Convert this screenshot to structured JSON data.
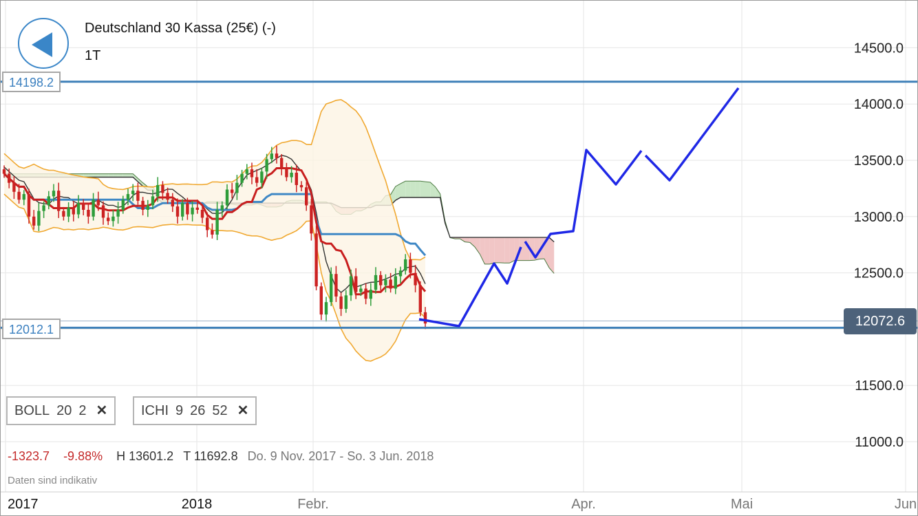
{
  "header": {
    "title": "Deutschland 30 Kassa (25€) (-)",
    "period": "1T"
  },
  "levels": {
    "upper": "14198.2",
    "lower": "12012.1",
    "current": "12072.6"
  },
  "indicators": {
    "boll": {
      "name": "BOLL",
      "p1": "20",
      "p2": "2"
    },
    "ichi": {
      "name": "ICHI",
      "p1": "9",
      "p2": "26",
      "p3": "52"
    }
  },
  "stats": {
    "change": "-1323.7",
    "change_pct": "-9.88%",
    "high": "H 13601.2",
    "low": "T 11692.8",
    "range": "Do. 9 Nov. 2017 - So. 3 Jun. 2018"
  },
  "disclaimer": "Daten sind indikativ",
  "colors": {
    "up_candle": "#2e9d3a",
    "down_candle": "#cc2222",
    "bollinger": "#f0a830",
    "kijun": "#3f88c5",
    "tenkan": "#c81e1e",
    "chikou": "#333333",
    "projection": "#1f28e6",
    "level_line": "#3f80b8"
  },
  "chart_data": {
    "type": "candlestick",
    "y_ticks": [
      "14500.0",
      "14000.0",
      "13500.0",
      "13000.0",
      "12500.0",
      "12000.0",
      "11500.0",
      "11000.0"
    ],
    "y_tick_values": [
      14500,
      14000,
      13500,
      13000,
      12500,
      12000,
      11500,
      11000
    ],
    "x_ticks": [
      "2017",
      "2018",
      "Febr.",
      "Apr.",
      "Mai",
      "Jun"
    ],
    "ohlc_close": [
      13380,
      13300,
      13220,
      13150,
      13200,
      13000,
      12920,
      13050,
      13100,
      13180,
      13230,
      13050,
      13000,
      13080,
      13020,
      13120,
      13060,
      13000,
      13150,
      13100,
      12990,
      12960,
      13000,
      13060,
      13150,
      13200,
      13230,
      13140,
      13060,
      13100,
      13180,
      13280,
      13210,
      13150,
      13090,
      13000,
      13120,
      13020,
      13080,
      13060,
      12990,
      12880,
      12840,
      13060,
      13100,
      13240,
      13210,
      13300,
      13380,
      13420,
      13350,
      13300,
      13400,
      13510,
      13560,
      13520,
      13430,
      13350,
      13390,
      13280,
      13260,
      13100,
      12850,
      12380,
      12130,
      12240,
      12490,
      12290,
      12180,
      12300,
      12470,
      12330,
      12360,
      12270,
      12350,
      12480,
      12390,
      12440,
      12360,
      12470,
      12520,
      12620,
      12500,
      12390,
      12150,
      12050
    ],
    "projection_path": [
      [
        12100,
        "ref"
      ]
    ],
    "annotations": []
  }
}
